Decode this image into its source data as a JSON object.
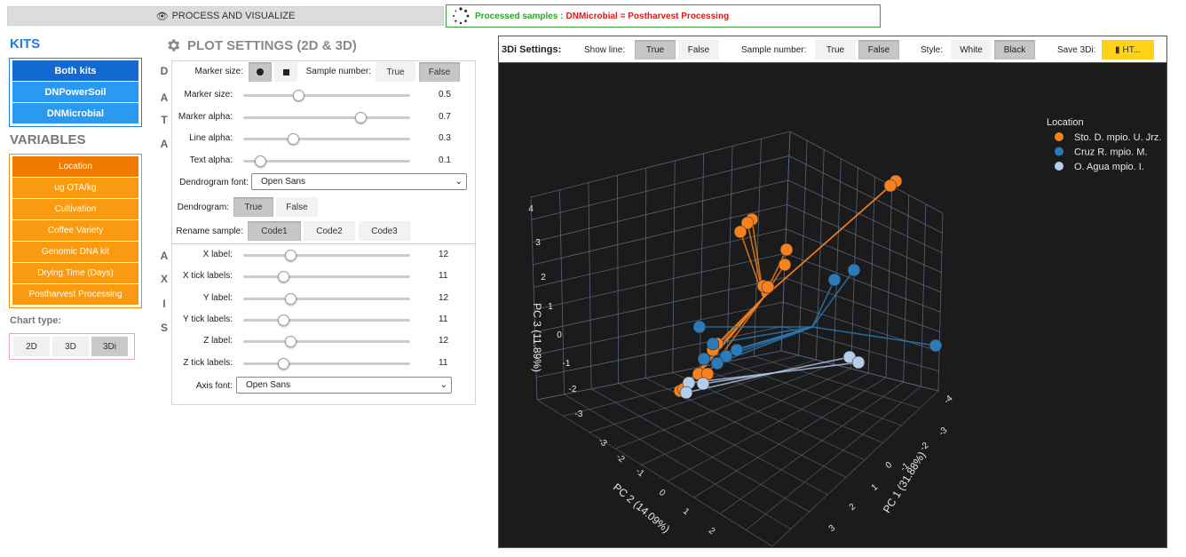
{
  "top": {
    "process_label": "PROCESS AND VISUALIZE",
    "status_prefix": "Processed samples :",
    "status_detail": "DNMicrobial = Postharvest Processing"
  },
  "kits": {
    "title": "KITS",
    "items": [
      "Both kits",
      "DNPowerSoil",
      "DNMicrobial"
    ],
    "active": 0
  },
  "variables": {
    "title": "VARIABLES",
    "items": [
      "Location",
      "ug OTA/kg",
      "Cultivation",
      "Coffee Variety",
      "Genomic DNA kit",
      "Drying Time (Days)",
      "Postharvest Processing"
    ],
    "active": 0
  },
  "chart_type": {
    "label": "Chart type:",
    "options": [
      "2D",
      "3D",
      "3Di"
    ],
    "active": 2
  },
  "plot_settings": {
    "title": "PLOT SETTINGS (2D & 3D)",
    "data_letters": [
      "D",
      "A",
      "T",
      "A"
    ],
    "axis_letters": [
      "A",
      "X",
      "I",
      "S"
    ],
    "marker_size_label": "Marker size:",
    "sample_number_label": "Sample number:",
    "true_label": "True",
    "false_label": "False",
    "sliders_data": [
      {
        "label": "Marker size:",
        "value": "0.5",
        "frac": 0.33
      },
      {
        "label": "Marker alpha:",
        "value": "0.7",
        "frac": 0.7
      },
      {
        "label": "Line alpha:",
        "value": "0.3",
        "frac": 0.3
      },
      {
        "label": "Text alpha:",
        "value": "0.1",
        "frac": 0.1
      }
    ],
    "dendrogram_font_label": "Dendrogram font:",
    "dendrogram_font_value": "Open Sans",
    "dendrogram_label": "Dendrogram:",
    "rename_label": "Rename sample:",
    "rename_options": [
      "Code1",
      "Code2",
      "Code3"
    ],
    "sliders_axis": [
      {
        "label": "X label:",
        "value": "12",
        "frac": 0.28
      },
      {
        "label": "X tick labels:",
        "value": "11",
        "frac": 0.24
      },
      {
        "label": "Y label:",
        "value": "12",
        "frac": 0.28
      },
      {
        "label": "Y tick labels:",
        "value": "11",
        "frac": 0.24
      },
      {
        "label": "Z label:",
        "value": "12",
        "frac": 0.28
      },
      {
        "label": "Z tick labels:",
        "value": "11",
        "frac": 0.24
      }
    ],
    "axis_font_label": "Axis font:",
    "axis_font_value": "Open Sans"
  },
  "panel": {
    "title": "3Di Settings:",
    "show_line_label": "Show line:",
    "sample_number_label": "Sample number:",
    "style_label": "Style:",
    "style_white": "White",
    "style_black": "Black",
    "save_label": "Save 3Di:",
    "save_button": "HT..."
  },
  "chart_data": {
    "type": "scatter",
    "legend_title": "Location",
    "xlabel": "PC 1 (31.88%)",
    "ylabel": "PC 2 (14.09%)",
    "zlabel": "PC 3 (11.89%)",
    "x_ticks": [
      "-4",
      "-3",
      "-2",
      "-1",
      "0",
      "1",
      "2",
      "3"
    ],
    "y_ticks": [
      "-3",
      "-2",
      "-1",
      "0",
      "1",
      "2"
    ],
    "z_ticks": [
      "4",
      "3",
      "2",
      "1",
      "0",
      "-1",
      "-2",
      "-3"
    ],
    "series": [
      {
        "name": "Sto. D. mpio. U. Jrz.",
        "color": "#f5821f",
        "points": [
          [
            1009,
            204
          ],
          [
            1003,
            209
          ],
          [
            847,
            247
          ],
          [
            842,
            251
          ],
          [
            834,
            261
          ],
          [
            886,
            281
          ],
          [
            884,
            298
          ],
          [
            860,
            322
          ],
          [
            865,
            323
          ],
          [
            808,
            387
          ],
          [
            803,
            394
          ],
          [
            787,
            421
          ],
          [
            797,
            421
          ],
          [
            773,
            436
          ],
          [
            766,
            440
          ],
          [
            770,
            438
          ]
        ]
      },
      {
        "name": "Cruz R. mpio. M.",
        "color": "#2c7bb6",
        "points": [
          [
            962,
            304
          ],
          [
            940,
            315
          ],
          [
            788,
            368
          ],
          [
            803,
            387
          ],
          [
            830,
            394
          ],
          [
            818,
            401
          ],
          [
            793,
            404
          ],
          [
            808,
            409
          ],
          [
            1054,
            389
          ]
        ]
      },
      {
        "name": "O. Agua mpio. I.",
        "color": "#b5cdea",
        "points": [
          [
            957,
            402
          ],
          [
            967,
            408
          ],
          [
            776,
            431
          ],
          [
            792,
            432
          ],
          [
            773,
            442
          ]
        ]
      }
    ]
  }
}
